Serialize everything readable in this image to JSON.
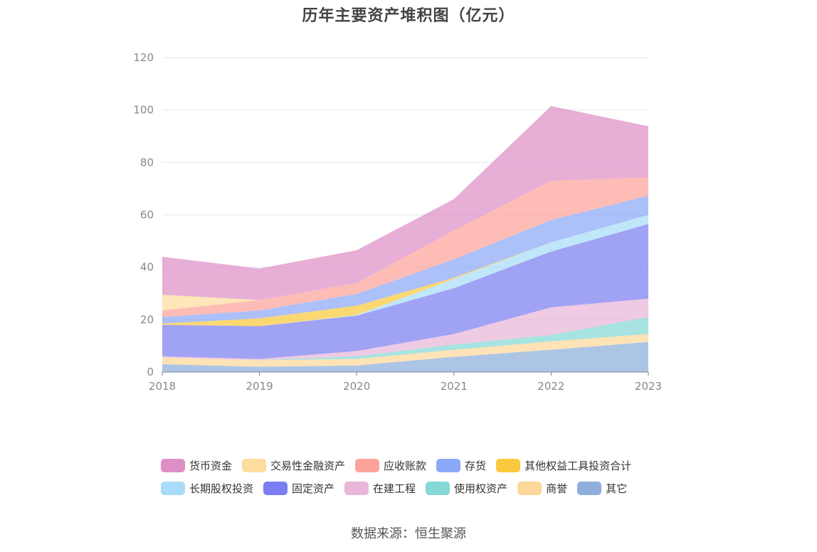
{
  "title": "历年主要资产堆积图（亿元）",
  "source": "数据来源：恒生聚源",
  "chart_data": {
    "type": "area",
    "stacked": true,
    "title": "历年主要资产堆积图（亿元）",
    "x": [
      "2018",
      "2019",
      "2020",
      "2021",
      "2022",
      "2023"
    ],
    "ylim": [
      0,
      120
    ],
    "yticks": [
      "0",
      "20",
      "40",
      "60",
      "80",
      "100",
      "120"
    ],
    "grid": true,
    "legend_position": "bottom",
    "series": [
      {
        "name": "其它",
        "color": "#8eaedb",
        "values": [
          3.0,
          2.0,
          2.5,
          5.8,
          8.5,
          11.5
        ]
      },
      {
        "name": "商誉",
        "color": "#fdd89a",
        "values": [
          2.5,
          2.5,
          2.5,
          2.7,
          3.2,
          3.0
        ]
      },
      {
        "name": "使用权资产",
        "color": "#85d8d6",
        "values": [
          0,
          0,
          1.0,
          2.0,
          2.5,
          6.5
        ]
      },
      {
        "name": "在建工程",
        "color": "#e8b6d8",
        "values": [
          0.5,
          0.5,
          2.0,
          4.0,
          10.5,
          7.0
        ]
      },
      {
        "name": "固定资产",
        "color": "#7b7ef0",
        "values": [
          12.0,
          12.5,
          13.5,
          17.5,
          21.3,
          28.5
        ]
      },
      {
        "name": "长期股权投资",
        "color": "#a8dcf8",
        "values": [
          0,
          0,
          0.3,
          3.5,
          3.5,
          3.5
        ]
      },
      {
        "name": "其他权益工具投资合计",
        "color": "#fbc93d",
        "values": [
          0.5,
          3.0,
          3.5,
          0.5,
          0,
          0
        ]
      },
      {
        "name": "存货",
        "color": "#8ca8f8",
        "values": [
          2.5,
          3.0,
          4.5,
          7.0,
          8.5,
          7.3
        ]
      },
      {
        "name": "应收账款",
        "color": "#fca29a",
        "values": [
          2.5,
          4.0,
          4.2,
          11.0,
          15.0,
          7.0
        ]
      },
      {
        "name": "交易性金融资产",
        "color": "#fedc9e",
        "values": [
          6.0,
          0,
          0,
          0,
          0,
          0
        ]
      },
      {
        "name": "货币资金",
        "color": "#de8fc6",
        "values": [
          14.5,
          12.0,
          12.5,
          12.0,
          28.5,
          19.5
        ]
      }
    ]
  },
  "legend_rows": [
    [
      "货币资金",
      "交易性金融资产",
      "应收账款",
      "存货",
      "其他权益工具投资合计"
    ],
    [
      "长期股权投资",
      "固定资产",
      "在建工程",
      "使用权资产",
      "商誉",
      "其它"
    ]
  ]
}
